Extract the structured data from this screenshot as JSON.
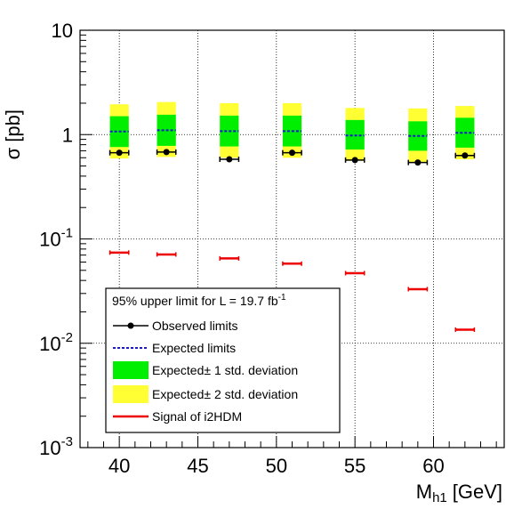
{
  "chart_data": {
    "type": "scatter",
    "title": "",
    "xlabel": "M",
    "xlabel_sub": "h1",
    "xlabel_unit": "[GeV]",
    "ylabel": "σ [pb]",
    "xlim": [
      37.5,
      64.5
    ],
    "ylim": [
      0.001,
      10
    ],
    "y_scale": "log",
    "grid": true,
    "x_ticks": [
      40,
      45,
      50,
      55,
      60
    ],
    "y_ticks": [
      {
        "value": 10,
        "base": "10",
        "exp": ""
      },
      {
        "value": 1,
        "base": "1",
        "exp": ""
      },
      {
        "value": 0.1,
        "base": "10",
        "exp": "-1"
      },
      {
        "value": 0.01,
        "base": "10",
        "exp": "-2"
      },
      {
        "value": 0.001,
        "base": "10",
        "exp": "-3"
      }
    ],
    "x": [
      40,
      43,
      47,
      51,
      55,
      59,
      62
    ],
    "series": [
      {
        "name": "Observed limits",
        "kind": "points",
        "color": "#000000",
        "values": [
          0.67,
          0.68,
          0.58,
          0.67,
          0.57,
          0.54,
          0.63
        ],
        "xerr": 0.6
      },
      {
        "name": "Expected limits",
        "kind": "dashed-segment",
        "color": "#1a1acc",
        "values": [
          1.07,
          1.1,
          1.08,
          1.08,
          0.98,
          0.97,
          1.04
        ],
        "xerr": 0.6
      },
      {
        "name": "Expected± 1 std. deviation",
        "kind": "band",
        "color": "#00ee00",
        "low": [
          0.76,
          0.78,
          0.77,
          0.77,
          0.72,
          0.7,
          0.75
        ],
        "high": [
          1.5,
          1.55,
          1.52,
          1.52,
          1.38,
          1.34,
          1.45
        ],
        "xerr": 0.6
      },
      {
        "name": "Expected± 2 std. deviation",
        "kind": "band",
        "color": "#ffff33",
        "low": [
          0.59,
          0.61,
          0.6,
          0.6,
          0.56,
          0.54,
          0.58
        ],
        "high": [
          1.95,
          2.05,
          2.0,
          2.0,
          1.8,
          1.78,
          1.88
        ],
        "xerr": 0.6
      },
      {
        "name": "Signal of i2HDM",
        "kind": "segment",
        "color": "#ee0000",
        "values": [
          0.074,
          0.071,
          0.065,
          0.058,
          0.047,
          0.033,
          0.0135
        ],
        "xerr": 0.6
      }
    ],
    "legend": {
      "placement": "lower-left",
      "header": "95% upper limit for L = 19.7 fb",
      "header_sup": "-1",
      "entries": [
        "Observed limits",
        "Expected limits",
        "Expected± 1 std. deviation",
        "Expected± 2 std. deviation",
        "Signal of i2HDM"
      ]
    }
  }
}
